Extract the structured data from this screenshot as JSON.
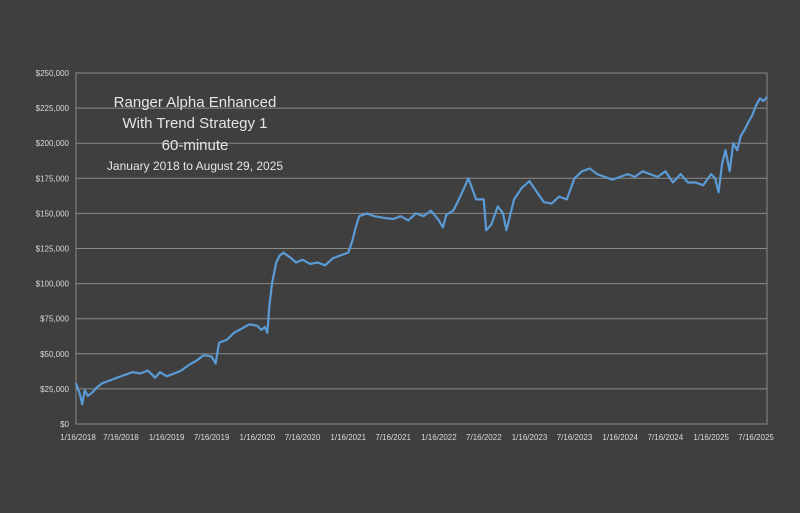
{
  "chart_data": {
    "type": "line",
    "title_lines": [
      "Ranger Alpha Enhanced",
      "With Trend Strategy 1",
      "60-minute"
    ],
    "subtitle": "January 2018 to August 29, 2025",
    "xlabel": "",
    "ylabel": "",
    "ylim": [
      0,
      250000
    ],
    "xlim": [
      "2018-01-16",
      "2025-08-29"
    ],
    "y_ticks": [
      "$0",
      "$25,000",
      "$50,000",
      "$75,000",
      "$100,000",
      "$125,000",
      "$150,000",
      "$175,000",
      "$200,000",
      "$225,000",
      "$250,000"
    ],
    "y_tick_values": [
      0,
      25000,
      50000,
      75000,
      100000,
      125000,
      150000,
      175000,
      200000,
      225000,
      250000
    ],
    "x_ticks": [
      "1/16/2018",
      "7/16/2018",
      "1/16/2019",
      "7/16/2019",
      "1/16/2020",
      "7/16/2020",
      "1/16/2021",
      "7/16/2021",
      "1/16/2022",
      "7/16/2022",
      "1/16/2023",
      "7/16/2023",
      "1/16/2024",
      "7/16/2024",
      "1/16/2025",
      "7/16/2025"
    ],
    "x_tick_dates": [
      "2018-01-16",
      "2018-07-16",
      "2019-01-16",
      "2019-07-16",
      "2020-01-16",
      "2020-07-16",
      "2021-01-16",
      "2021-07-16",
      "2022-01-16",
      "2022-07-16",
      "2023-01-16",
      "2023-07-16",
      "2024-01-16",
      "2024-07-16",
      "2025-01-16",
      "2025-07-16"
    ],
    "grid": true,
    "legend": "none",
    "line_color": "#5b9bd5",
    "series": [
      {
        "x": [
          "2018-01-16",
          "2018-02-01",
          "2018-02-10",
          "2018-02-20",
          "2018-03-05",
          "2018-03-20",
          "2018-04-10",
          "2018-05-01",
          "2018-06-01",
          "2018-07-01",
          "2018-08-01",
          "2018-09-01",
          "2018-10-01",
          "2018-11-01",
          "2018-12-01",
          "2018-12-20",
          "2019-01-16",
          "2019-02-15",
          "2019-03-15",
          "2019-04-15",
          "2019-05-15",
          "2019-06-15",
          "2019-07-16",
          "2019-08-01",
          "2019-08-15",
          "2019-09-15",
          "2019-10-15",
          "2019-11-15",
          "2019-12-15",
          "2020-01-16",
          "2020-02-01",
          "2020-02-15",
          "2020-02-25",
          "2020-03-05",
          "2020-03-15",
          "2020-04-01",
          "2020-04-15",
          "2020-05-01",
          "2020-06-01",
          "2020-06-20",
          "2020-07-16",
          "2020-08-15",
          "2020-09-15",
          "2020-10-15",
          "2020-11-15",
          "2020-12-15",
          "2021-01-16",
          "2021-02-01",
          "2021-02-15",
          "2021-03-01",
          "2021-04-01",
          "2021-05-01",
          "2021-06-01",
          "2021-07-16",
          "2021-08-15",
          "2021-09-15",
          "2021-10-15",
          "2021-11-15",
          "2021-12-15",
          "2022-01-16",
          "2022-02-01",
          "2022-02-15",
          "2022-03-15",
          "2022-04-01",
          "2022-04-20",
          "2022-05-15",
          "2022-06-15",
          "2022-07-16",
          "2022-07-25",
          "2022-08-15",
          "2022-09-10",
          "2022-10-01",
          "2022-10-15",
          "2022-11-15",
          "2022-12-15",
          "2023-01-16",
          "2023-02-15",
          "2023-03-15",
          "2023-04-15",
          "2023-05-15",
          "2023-06-15",
          "2023-07-16",
          "2023-08-15",
          "2023-09-15",
          "2023-10-15",
          "2023-11-15",
          "2023-12-15",
          "2024-01-16",
          "2024-02-15",
          "2024-03-15",
          "2024-04-15",
          "2024-05-15",
          "2024-06-15",
          "2024-07-16",
          "2024-08-15",
          "2024-09-15",
          "2024-10-15",
          "2024-11-15",
          "2024-12-15",
          "2025-01-16",
          "2025-02-01",
          "2025-02-15",
          "2025-03-01",
          "2025-03-15",
          "2025-04-01",
          "2025-04-15",
          "2025-05-01",
          "2025-05-15",
          "2025-06-01",
          "2025-06-15",
          "2025-07-01",
          "2025-07-16",
          "2025-08-01",
          "2025-08-15",
          "2025-08-29"
        ],
        "y": [
          29000,
          21000,
          14000,
          24000,
          20000,
          22000,
          26000,
          29000,
          31000,
          33000,
          35000,
          37000,
          36000,
          38000,
          33000,
          37000,
          34000,
          36000,
          38000,
          42000,
          45000,
          49000,
          48000,
          43000,
          58000,
          60000,
          65000,
          68000,
          71000,
          70000,
          67000,
          69000,
          65000,
          85000,
          100000,
          115000,
          120000,
          122000,
          118000,
          115000,
          117000,
          114000,
          115000,
          113000,
          118000,
          120000,
          122000,
          130000,
          140000,
          148000,
          150000,
          148000,
          147000,
          146000,
          148000,
          145000,
          150000,
          148000,
          152000,
          145000,
          140000,
          149000,
          152000,
          158000,
          165000,
          175000,
          160000,
          160000,
          138000,
          142000,
          155000,
          150000,
          138000,
          160000,
          168000,
          173000,
          165000,
          158000,
          157000,
          162000,
          160000,
          175000,
          180000,
          182000,
          178000,
          176000,
          174000,
          176000,
          178000,
          176000,
          180000,
          178000,
          176000,
          180000,
          172000,
          178000,
          172000,
          172000,
          170000,
          178000,
          175000,
          165000,
          185000,
          195000,
          180000,
          200000,
          195000,
          205000,
          210000,
          215000,
          220000,
          227000,
          232000,
          230000,
          233000
        ]
      }
    ]
  }
}
